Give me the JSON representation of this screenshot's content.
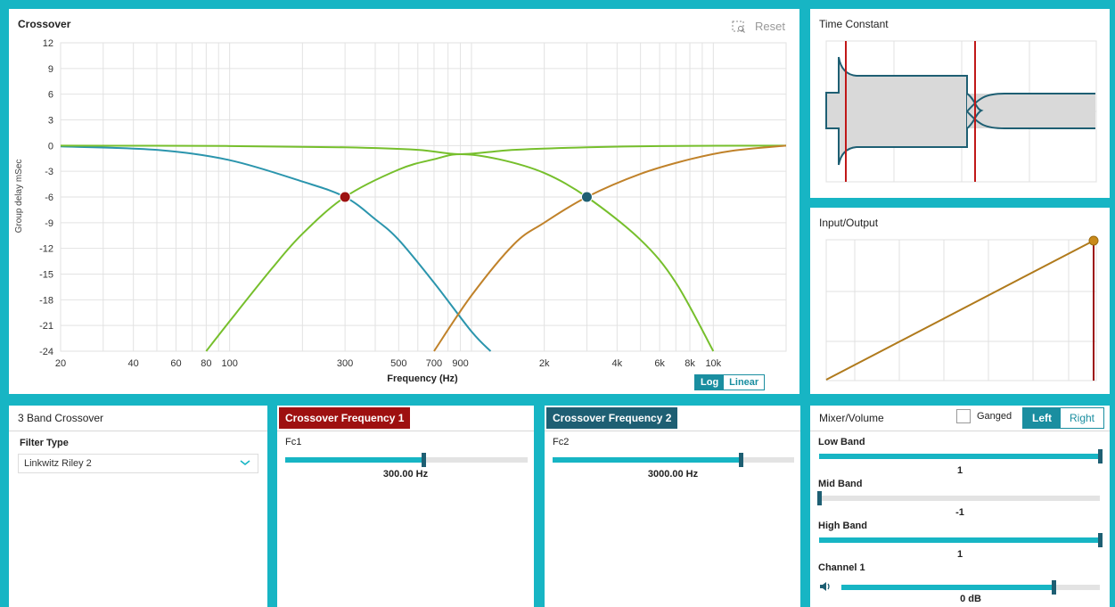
{
  "colors": {
    "low": "#2b95ad",
    "mid": "#76bf2c",
    "high": "#c0822a",
    "marker1": "#9d1111",
    "marker2": "#1e5f73",
    "accent": "#17b5c4",
    "dark_teal": "#1e5f73",
    "red_tab": "#9e1010"
  },
  "crossover": {
    "title": "Crossover",
    "reset_label": "Reset",
    "reset_icon": "zoom-reset-icon",
    "scale_log": "Log",
    "scale_linear": "Linear",
    "scale_selected": "Log"
  },
  "chart_data": {
    "type": "line",
    "xlabel": "Frequency (Hz)",
    "ylabel": "Group delay mSec",
    "xscale": "log",
    "xlim": [
      20,
      20000
    ],
    "ylim": [
      -24,
      12
    ],
    "grid": true,
    "yticks": [
      "12",
      "9",
      "6",
      "3",
      "0",
      "-3",
      "-6",
      "-9",
      "-12",
      "-15",
      "-18",
      "-21",
      "-24"
    ],
    "xticks": [
      {
        "v": 20,
        "label": "20"
      },
      {
        "v": 40,
        "label": "40"
      },
      {
        "v": 60,
        "label": "60"
      },
      {
        "v": 80,
        "label": "80"
      },
      {
        "v": 100,
        "label": "100"
      },
      {
        "v": 300,
        "label": "300"
      },
      {
        "v": 500,
        "label": "500"
      },
      {
        "v": 700,
        "label": "700"
      },
      {
        "v": 900,
        "label": "900"
      },
      {
        "v": 2000,
        "label": "2k"
      },
      {
        "v": 4000,
        "label": "4k"
      },
      {
        "v": 6000,
        "label": "6k"
      },
      {
        "v": 8000,
        "label": "8k"
      },
      {
        "v": 10000,
        "label": "10k"
      }
    ],
    "series": [
      {
        "color_key": "low",
        "x": [
          20,
          50,
          100,
          200,
          300,
          400,
          500,
          700,
          1000,
          1200
        ],
        "y": [
          -0.1,
          -0.5,
          -1.7,
          -4.2,
          -6,
          -8.6,
          -11,
          -16,
          -21.7,
          -24
        ]
      },
      {
        "color_key": "mid",
        "x": [
          80,
          100,
          150,
          200,
          300,
          500,
          700,
          900,
          1300,
          2000,
          3000,
          5000,
          7000,
          10000
        ],
        "y": [
          -24,
          -20.5,
          -14.3,
          -10.3,
          -6,
          -2.8,
          -1.6,
          -1,
          -1.6,
          -3.2,
          -6,
          -11,
          -16,
          -24
        ]
      },
      {
        "color_key": "mid",
        "x": [
          20,
          100,
          300,
          600,
          900,
          1500,
          3000,
          6000,
          20000
        ],
        "y": [
          0,
          -0.05,
          -0.2,
          -0.5,
          -1,
          -0.5,
          -0.2,
          -0.05,
          0
        ]
      },
      {
        "color_key": "high",
        "x": [
          700,
          1000,
          1500,
          2000,
          3000,
          5000,
          8000,
          12000,
          20000
        ],
        "y": [
          -24,
          -17.5,
          -11.5,
          -9,
          -6,
          -3.3,
          -1.6,
          -0.6,
          0
        ]
      }
    ],
    "markers": [
      {
        "x": 300,
        "y": -6,
        "color_key": "marker1"
      },
      {
        "x": 3000,
        "y": -6,
        "color_key": "marker2"
      }
    ]
  },
  "time_constant": {
    "title": "Time Constant"
  },
  "io": {
    "title": "Input/Output"
  },
  "band_crossover": {
    "title": "3 Band Crossover",
    "filter_label": "Filter Type",
    "filter_value": "Linkwitz Riley 2",
    "chevron_icon": "chevron-down-icon"
  },
  "cf1": {
    "title": "Crossover Frequency 1",
    "label": "Fc1",
    "value": "300.00 Hz",
    "fraction": 0.57
  },
  "cf2": {
    "title": "Crossover Frequency 2",
    "label": "Fc2",
    "value": "3000.00 Hz",
    "fraction": 0.78
  },
  "mixer": {
    "title": "Mixer/Volume",
    "ganged_label": "Ganged",
    "ganged_checked": false,
    "left_label": "Left",
    "right_label": "Right",
    "selected": "Left",
    "low": {
      "label": "Low Band",
      "value": "1",
      "fraction": 1.0
    },
    "mid": {
      "label": "Mid Band",
      "value": "-1",
      "fraction": 0.0
    },
    "high": {
      "label": "High Band",
      "value": "1",
      "fraction": 1.0
    },
    "channel": {
      "label": "Channel 1",
      "value": "0 dB",
      "fraction": 0.82,
      "icon": "speaker-icon"
    }
  }
}
